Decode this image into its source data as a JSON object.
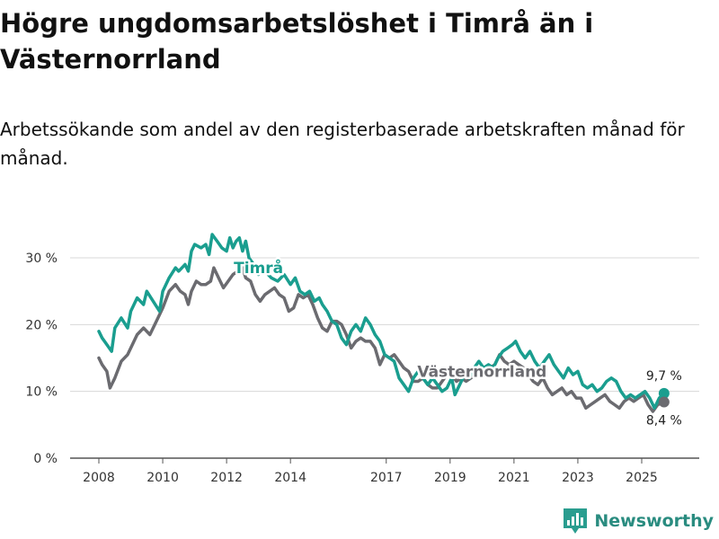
{
  "title": "Högre ungdomsarbetslöshet i Timrå än i Västernorrland",
  "subtitle": "Arbetssökande som andel av den registerbaserade arbetskraften månad för månad.",
  "brand": {
    "name": "Newsworthy",
    "icon": "bar-chart-logo-icon",
    "color": "#2a9d8f"
  },
  "chart_data": {
    "type": "line",
    "title": "Högre ungdomsarbetslöshet i Timrå än i Västernorrland",
    "xlabel": "",
    "ylabel": "",
    "xlim": [
      2007.9,
      2025.9
    ],
    "ylim": [
      0,
      33
    ],
    "y_ticks": [
      0,
      10,
      20,
      30
    ],
    "y_tick_labels": [
      "0 %",
      "10 %",
      "20 %",
      "30 %"
    ],
    "x_ticks": [
      2008,
      2010,
      2012,
      2014,
      2017,
      2019,
      2021,
      2023,
      2025
    ],
    "x_tick_labels": [
      "2008",
      "2010",
      "2012",
      "2014",
      "2017",
      "2019",
      "2021",
      "2023",
      "2025"
    ],
    "grid": "horizontal",
    "series": [
      {
        "name": "Timrå",
        "color": "#1a9e8f",
        "end_label": "9,7 %",
        "points": [
          [
            2008.0,
            19.0
          ],
          [
            2008.1,
            18.0
          ],
          [
            2008.25,
            17.0
          ],
          [
            2008.4,
            16.0
          ],
          [
            2008.5,
            19.5
          ],
          [
            2008.7,
            21.0
          ],
          [
            2008.9,
            19.5
          ],
          [
            2009.0,
            22.0
          ],
          [
            2009.2,
            24.0
          ],
          [
            2009.4,
            23.0
          ],
          [
            2009.5,
            25.0
          ],
          [
            2009.7,
            23.5
          ],
          [
            2009.9,
            22.0
          ],
          [
            2010.0,
            25.0
          ],
          [
            2010.2,
            27.0
          ],
          [
            2010.4,
            28.5
          ],
          [
            2010.5,
            28.0
          ],
          [
            2010.7,
            29.0
          ],
          [
            2010.8,
            28.0
          ],
          [
            2010.9,
            31.0
          ],
          [
            2011.0,
            32.0
          ],
          [
            2011.2,
            31.5
          ],
          [
            2011.35,
            32.0
          ],
          [
            2011.45,
            30.5
          ],
          [
            2011.55,
            33.5
          ],
          [
            2011.7,
            32.5
          ],
          [
            2011.85,
            31.5
          ],
          [
            2012.0,
            31.0
          ],
          [
            2012.1,
            33.0
          ],
          [
            2012.2,
            31.5
          ],
          [
            2012.3,
            32.5
          ],
          [
            2012.4,
            33.0
          ],
          [
            2012.5,
            31.0
          ],
          [
            2012.6,
            32.5
          ],
          [
            2012.7,
            30.0
          ],
          [
            2012.85,
            29.0
          ],
          [
            2013.0,
            27.5
          ],
          [
            2013.1,
            29.0
          ],
          [
            2013.2,
            28.0
          ],
          [
            2013.4,
            27.0
          ],
          [
            2013.6,
            26.5
          ],
          [
            2013.8,
            27.5
          ],
          [
            2014.0,
            26.0
          ],
          [
            2014.15,
            27.0
          ],
          [
            2014.3,
            25.0
          ],
          [
            2014.45,
            24.5
          ],
          [
            2014.6,
            25.0
          ],
          [
            2014.75,
            23.5
          ],
          [
            2014.9,
            24.0
          ],
          [
            2015.0,
            23.0
          ],
          [
            2015.15,
            22.0
          ],
          [
            2015.3,
            20.5
          ],
          [
            2015.45,
            20.0
          ],
          [
            2015.6,
            18.0
          ],
          [
            2015.75,
            17.0
          ],
          [
            2015.9,
            19.0
          ],
          [
            2016.05,
            20.0
          ],
          [
            2016.2,
            19.0
          ],
          [
            2016.35,
            21.0
          ],
          [
            2016.5,
            20.0
          ],
          [
            2016.65,
            18.5
          ],
          [
            2016.8,
            17.5
          ],
          [
            2016.95,
            15.5
          ],
          [
            2017.1,
            15.0
          ],
          [
            2017.25,
            14.5
          ],
          [
            2017.4,
            12.0
          ],
          [
            2017.55,
            11.0
          ],
          [
            2017.7,
            10.0
          ],
          [
            2017.85,
            12.0
          ],
          [
            2018.0,
            13.0
          ],
          [
            2018.15,
            12.0
          ],
          [
            2018.3,
            11.0
          ],
          [
            2018.45,
            12.0
          ],
          [
            2018.6,
            11.0
          ],
          [
            2018.75,
            10.0
          ],
          [
            2018.9,
            10.5
          ],
          [
            2019.05,
            12.0
          ],
          [
            2019.15,
            9.5
          ],
          [
            2019.3,
            11.0
          ],
          [
            2019.45,
            12.5
          ],
          [
            2019.6,
            12.0
          ],
          [
            2019.75,
            13.5
          ],
          [
            2019.9,
            14.5
          ],
          [
            2020.05,
            13.5
          ],
          [
            2020.2,
            14.0
          ],
          [
            2020.35,
            13.5
          ],
          [
            2020.5,
            15.0
          ],
          [
            2020.65,
            16.0
          ],
          [
            2020.8,
            16.5
          ],
          [
            2020.95,
            17.0
          ],
          [
            2021.05,
            17.5
          ],
          [
            2021.2,
            16.0
          ],
          [
            2021.35,
            15.0
          ],
          [
            2021.5,
            16.0
          ],
          [
            2021.65,
            14.5
          ],
          [
            2021.8,
            13.5
          ],
          [
            2021.95,
            14.5
          ],
          [
            2022.1,
            15.5
          ],
          [
            2022.25,
            14.0
          ],
          [
            2022.4,
            13.0
          ],
          [
            2022.55,
            12.0
          ],
          [
            2022.7,
            13.5
          ],
          [
            2022.85,
            12.5
          ],
          [
            2023.0,
            13.0
          ],
          [
            2023.15,
            11.0
          ],
          [
            2023.3,
            10.5
          ],
          [
            2023.45,
            11.0
          ],
          [
            2023.6,
            10.0
          ],
          [
            2023.75,
            10.5
          ],
          [
            2023.9,
            11.5
          ],
          [
            2024.05,
            12.0
          ],
          [
            2024.2,
            11.5
          ],
          [
            2024.35,
            10.0
          ],
          [
            2024.5,
            9.0
          ],
          [
            2024.65,
            9.5
          ],
          [
            2024.8,
            9.0
          ],
          [
            2024.95,
            9.5
          ],
          [
            2025.1,
            10.0
          ],
          [
            2025.25,
            9.0
          ],
          [
            2025.4,
            7.5
          ],
          [
            2025.55,
            9.0
          ],
          [
            2025.7,
            9.7
          ]
        ]
      },
      {
        "name": "Västernorrland",
        "color": "#6b6b70",
        "end_label": "8,4 %",
        "points": [
          [
            2008.0,
            15.0
          ],
          [
            2008.1,
            14.0
          ],
          [
            2008.25,
            13.0
          ],
          [
            2008.35,
            10.5
          ],
          [
            2008.5,
            12.0
          ],
          [
            2008.7,
            14.5
          ],
          [
            2008.9,
            15.5
          ],
          [
            2009.05,
            17.0
          ],
          [
            2009.2,
            18.5
          ],
          [
            2009.4,
            19.5
          ],
          [
            2009.6,
            18.5
          ],
          [
            2009.8,
            20.5
          ],
          [
            2010.0,
            22.5
          ],
          [
            2010.2,
            25.0
          ],
          [
            2010.4,
            26.0
          ],
          [
            2010.55,
            25.0
          ],
          [
            2010.7,
            24.5
          ],
          [
            2010.8,
            23.0
          ],
          [
            2010.9,
            25.0
          ],
          [
            2011.05,
            26.5
          ],
          [
            2011.2,
            26.0
          ],
          [
            2011.35,
            26.0
          ],
          [
            2011.5,
            26.5
          ],
          [
            2011.6,
            28.5
          ],
          [
            2011.75,
            27.0
          ],
          [
            2011.9,
            25.5
          ],
          [
            2012.05,
            26.5
          ],
          [
            2012.2,
            27.5
          ],
          [
            2012.35,
            28.0
          ],
          [
            2012.5,
            28.5
          ],
          [
            2012.6,
            27.0
          ],
          [
            2012.75,
            26.5
          ],
          [
            2012.9,
            24.5
          ],
          [
            2013.05,
            23.5
          ],
          [
            2013.2,
            24.5
          ],
          [
            2013.35,
            25.0
          ],
          [
            2013.5,
            25.5
          ],
          [
            2013.65,
            24.5
          ],
          [
            2013.8,
            24.0
          ],
          [
            2013.95,
            22.0
          ],
          [
            2014.1,
            22.5
          ],
          [
            2014.25,
            24.5
          ],
          [
            2014.4,
            24.0
          ],
          [
            2014.55,
            24.5
          ],
          [
            2014.7,
            23.0
          ],
          [
            2014.85,
            21.0
          ],
          [
            2015.0,
            19.5
          ],
          [
            2015.15,
            19.0
          ],
          [
            2015.3,
            20.5
          ],
          [
            2015.45,
            20.5
          ],
          [
            2015.6,
            20.0
          ],
          [
            2015.75,
            18.5
          ],
          [
            2015.9,
            16.5
          ],
          [
            2016.05,
            17.5
          ],
          [
            2016.2,
            18.0
          ],
          [
            2016.35,
            17.5
          ],
          [
            2016.5,
            17.5
          ],
          [
            2016.65,
            16.5
          ],
          [
            2016.8,
            14.0
          ],
          [
            2016.95,
            15.5
          ],
          [
            2017.1,
            15.0
          ],
          [
            2017.25,
            15.5
          ],
          [
            2017.4,
            14.5
          ],
          [
            2017.55,
            13.5
          ],
          [
            2017.7,
            13.0
          ],
          [
            2017.85,
            11.5
          ],
          [
            2018.0,
            11.5
          ],
          [
            2018.15,
            12.0
          ],
          [
            2018.3,
            11.0
          ],
          [
            2018.45,
            10.5
          ],
          [
            2018.6,
            10.5
          ],
          [
            2018.75,
            11.5
          ],
          [
            2018.9,
            12.5
          ],
          [
            2019.05,
            12.5
          ],
          [
            2019.2,
            11.5
          ],
          [
            2019.35,
            12.0
          ],
          [
            2019.5,
            11.5
          ],
          [
            2019.65,
            12.0
          ],
          [
            2019.8,
            12.5
          ],
          [
            2019.95,
            13.0
          ],
          [
            2020.1,
            12.5
          ],
          [
            2020.25,
            13.5
          ],
          [
            2020.4,
            14.0
          ],
          [
            2020.55,
            15.5
          ],
          [
            2020.7,
            14.5
          ],
          [
            2020.85,
            14.0
          ],
          [
            2021.0,
            14.5
          ],
          [
            2021.15,
            14.0
          ],
          [
            2021.3,
            13.5
          ],
          [
            2021.45,
            12.5
          ],
          [
            2021.6,
            11.5
          ],
          [
            2021.75,
            11.0
          ],
          [
            2021.9,
            12.0
          ],
          [
            2022.05,
            10.5
          ],
          [
            2022.2,
            9.5
          ],
          [
            2022.35,
            10.0
          ],
          [
            2022.5,
            10.5
          ],
          [
            2022.65,
            9.5
          ],
          [
            2022.8,
            10.0
          ],
          [
            2022.95,
            9.0
          ],
          [
            2023.1,
            9.0
          ],
          [
            2023.25,
            7.5
          ],
          [
            2023.4,
            8.0
          ],
          [
            2023.55,
            8.5
          ],
          [
            2023.7,
            9.0
          ],
          [
            2023.85,
            9.5
          ],
          [
            2024.0,
            8.5
          ],
          [
            2024.15,
            8.0
          ],
          [
            2024.3,
            7.5
          ],
          [
            2024.45,
            8.5
          ],
          [
            2024.6,
            9.0
          ],
          [
            2024.75,
            8.5
          ],
          [
            2024.9,
            9.0
          ],
          [
            2025.05,
            9.5
          ],
          [
            2025.2,
            8.0
          ],
          [
            2025.35,
            7.0
          ],
          [
            2025.5,
            8.0
          ],
          [
            2025.7,
            8.4
          ]
        ]
      }
    ]
  }
}
